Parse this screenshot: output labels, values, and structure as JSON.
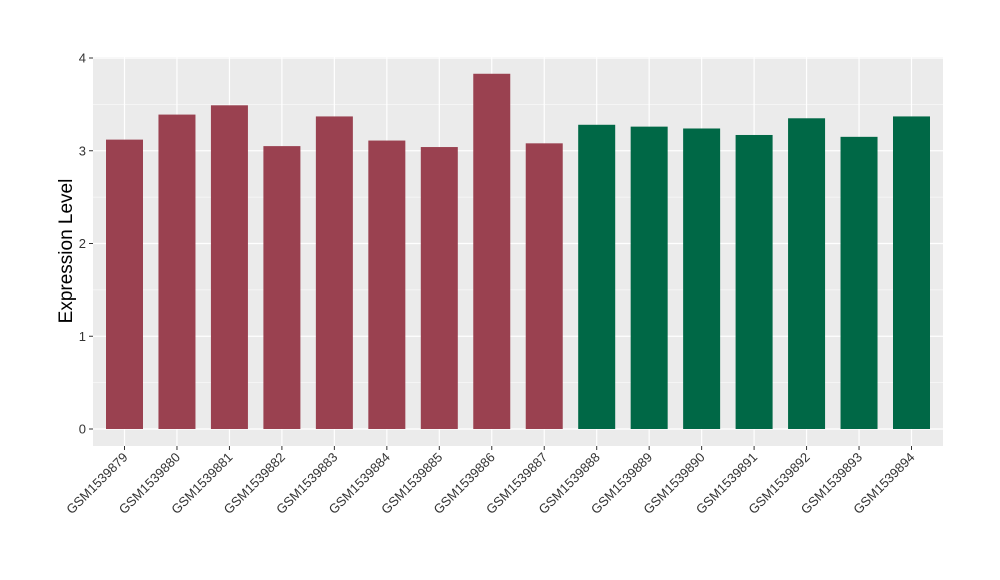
{
  "chart_data": {
    "type": "bar",
    "ylabel": "Expression Level",
    "xlabel": "",
    "ylim": [
      0,
      4
    ],
    "yticks": [
      0,
      1,
      2,
      3,
      4
    ],
    "grid": true,
    "categories": [
      "GSM1539879",
      "GSM1539880",
      "GSM1539881",
      "GSM1539882",
      "GSM1539883",
      "GSM1539884",
      "GSM1539885",
      "GSM1539886",
      "GSM1539887",
      "GSM1539888",
      "GSM1539889",
      "GSM1539890",
      "GSM1539891",
      "GSM1539892",
      "GSM1539893",
      "GSM1539894"
    ],
    "values": [
      3.12,
      3.39,
      3.49,
      3.05,
      3.37,
      3.11,
      3.04,
      3.83,
      3.08,
      3.28,
      3.26,
      3.24,
      3.17,
      3.35,
      3.15,
      3.37
    ],
    "bar_colors": [
      "#9a4150",
      "#9a4150",
      "#9a4150",
      "#9a4150",
      "#9a4150",
      "#9a4150",
      "#9a4150",
      "#9a4150",
      "#9a4150",
      "#006846",
      "#006846",
      "#006846",
      "#006846",
      "#006846",
      "#006846",
      "#006846"
    ],
    "panel_background": "#ebebeb",
    "grid_color": "#ffffff"
  }
}
